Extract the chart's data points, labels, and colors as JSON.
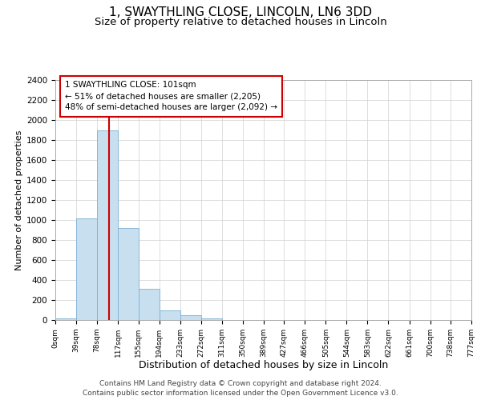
{
  "title": "1, SWAYTHLING CLOSE, LINCOLN, LN6 3DD",
  "subtitle": "Size of property relative to detached houses in Lincoln",
  "xlabel": "Distribution of detached houses by size in Lincoln",
  "ylabel": "Number of detached properties",
  "bar_color": "#c8dff0",
  "bar_edge_color": "#7ab0d4",
  "tick_labels": [
    "0sqm",
    "39sqm",
    "78sqm",
    "117sqm",
    "155sqm",
    "194sqm",
    "233sqm",
    "272sqm",
    "311sqm",
    "350sqm",
    "389sqm",
    "427sqm",
    "466sqm",
    "505sqm",
    "544sqm",
    "583sqm",
    "622sqm",
    "661sqm",
    "700sqm",
    "738sqm",
    "777sqm"
  ],
  "bar_values": [
    20,
    1020,
    1900,
    920,
    315,
    100,
    50,
    20,
    0,
    0,
    0,
    0,
    0,
    0,
    0,
    0,
    0,
    0,
    0,
    0
  ],
  "bin_edges": [
    0,
    39,
    78,
    117,
    155,
    194,
    233,
    272,
    311,
    350,
    389,
    427,
    466,
    505,
    544,
    583,
    622,
    661,
    700,
    738,
    777
  ],
  "ylim": [
    0,
    2400
  ],
  "yticks": [
    0,
    200,
    400,
    600,
    800,
    1000,
    1200,
    1400,
    1600,
    1800,
    2000,
    2200,
    2400
  ],
  "property_sqm": 101,
  "vline_color": "#cc0000",
  "annotation_text": "1 SWAYTHLING CLOSE: 101sqm\n← 51% of detached houses are smaller (2,205)\n48% of semi-detached houses are larger (2,092) →",
  "annotation_box_color": "#ffffff",
  "annotation_box_edge_color": "#cc0000",
  "footer_text": "Contains HM Land Registry data © Crown copyright and database right 2024.\nContains public sector information licensed under the Open Government Licence v3.0.",
  "title_fontsize": 11,
  "subtitle_fontsize": 9.5,
  "xlabel_fontsize": 9,
  "ylabel_fontsize": 8,
  "annotation_fontsize": 7.5,
  "footer_fontsize": 6.5,
  "tick_fontsize": 6.5,
  "ytick_fontsize": 7.5,
  "background_color": "#ffffff",
  "grid_color": "#d0d0d0"
}
